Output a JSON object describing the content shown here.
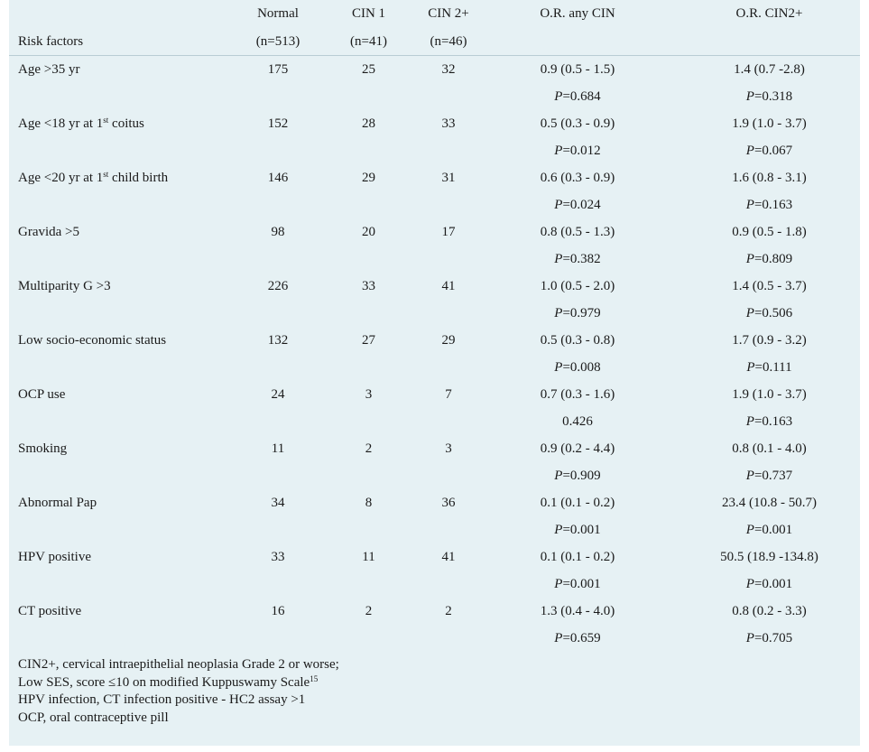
{
  "columns": {
    "normal": "Normal",
    "cin1": "CIN 1",
    "cin2": "CIN 2+",
    "or_any": "O.R. any CIN",
    "or_cin2": "O.R. CIN2+"
  },
  "subheader": {
    "risk_factors": "Risk factors",
    "normal_n": "(n=513)",
    "cin1_n": "(n=41)",
    "cin2_n": "(n=46)"
  },
  "rows": [
    {
      "factor": "Age >35 yr",
      "normal": "175",
      "cin1": "25",
      "cin2": "32",
      "or_any": "0.9 (0.5 - 1.5)",
      "p_any_label": "P",
      "p_any": "=0.684",
      "or_cin2": "1.4 (0.7 -2.8)",
      "p_cin2_label": "P",
      "p_cin2": "=0.318"
    },
    {
      "factor_pre": "Age <18 yr at 1",
      "factor_sup": "st",
      "factor_post": " coitus",
      "normal": "152",
      "cin1": "28",
      "cin2": "33",
      "or_any": "0.5 (0.3 - 0.9)",
      "p_any_label": "P",
      "p_any": "=0.012",
      "or_cin2": "1.9 (1.0 - 3.7)",
      "p_cin2_label": "P",
      "p_cin2": "=0.067"
    },
    {
      "factor_pre": "Age <20 yr at 1",
      "factor_sup": "st",
      "factor_post": " child birth",
      "normal": "146",
      "cin1": "29",
      "cin2": "31",
      "or_any": "0.6 (0.3 - 0.9)",
      "p_any_label": "P",
      "p_any": "=0.024",
      "or_cin2": "1.6 (0.8 - 3.1)",
      "p_cin2_label": "P",
      "p_cin2": "=0.163"
    },
    {
      "factor": "Gravida >5",
      "normal": "98",
      "cin1": "20",
      "cin2": "17",
      "or_any": "0.8 (0.5 - 1.3)",
      "p_any_label": "P",
      "p_any": "=0.382",
      "or_cin2": "0.9 (0.5 - 1.8)",
      "p_cin2_label": "P",
      "p_cin2": "=0.809"
    },
    {
      "factor": "Multiparity G >3",
      "normal": "226",
      "cin1": "33",
      "cin2": "41",
      "or_any": "1.0 (0.5 - 2.0)",
      "p_any_label": "P",
      "p_any": "=0.979",
      "or_cin2": "1.4 (0.5 - 3.7)",
      "p_cin2_label": "P",
      "p_cin2": "=0.506"
    },
    {
      "factor": "Low socio-economic status",
      "normal": "132",
      "cin1": "27",
      "cin2": "29",
      "or_any": "0.5 (0.3 - 0.8)",
      "p_any_label": "P",
      "p_any": "=0.008",
      "or_cin2": "1.7 (0.9 - 3.2)",
      "p_cin2_label": "P",
      "p_cin2": "=0.111"
    },
    {
      "factor": "OCP use",
      "normal": "24",
      "cin1": "3",
      "cin2": "7",
      "or_any": "0.7 (0.3 - 1.6)",
      "p_any_label": "",
      "p_any": "0.426",
      "or_cin2": "1.9 (1.0 - 3.7)",
      "p_cin2_label": "P",
      "p_cin2": "=0.163"
    },
    {
      "factor": "Smoking",
      "normal": "11",
      "cin1": "2",
      "cin2": "3",
      "or_any": "0.9 (0.2 - 4.4)",
      "p_any_label": "P",
      "p_any": "=0.909",
      "or_cin2": "0.8 (0.1 - 4.0)",
      "p_cin2_label": "P",
      "p_cin2": "=0.737"
    },
    {
      "factor": "Abnormal Pap",
      "normal": "34",
      "cin1": "8",
      "cin2": "36",
      "or_any": "0.1 (0.1 - 0.2)",
      "p_any_label": "P",
      "p_any": "=0.001",
      "or_cin2": "23.4 (10.8 - 50.7)",
      "p_cin2_label": "P",
      "p_cin2": "=0.001"
    },
    {
      "factor": "HPV positive",
      "normal": "33",
      "cin1": "11",
      "cin2": "41",
      "or_any": "0.1 (0.1 - 0.2)",
      "p_any_label": "P",
      "p_any": "=0.001",
      "or_cin2": "50.5 (18.9 -134.8)",
      "p_cin2_label": "P",
      "p_cin2": "=0.001"
    },
    {
      "factor": "CT positive",
      "normal": "16",
      "cin1": "2",
      "cin2": "2",
      "or_any": "1.3 (0.4 - 4.0)",
      "p_any_label": "P",
      "p_any": "=0.659",
      "or_cin2": "0.8 (0.2 - 3.3)",
      "p_cin2_label": "P",
      "p_cin2": "=0.705"
    }
  ],
  "footnotes": {
    "line1": "CIN2+, cervical intraepithelial neoplasia Grade 2 or worse;",
    "line2_pre": "Low SES, score ≤10 on modified Kuppuswamy Scale",
    "line2_sup": "15",
    "line3": "HPV infection, CT infection positive - HC2 assay >1",
    "line4": "OCP, oral contraceptive pill"
  },
  "colors": {
    "background": "#e6f1f4",
    "rule": "#b9cdd4",
    "text": "#1a1a1a"
  }
}
